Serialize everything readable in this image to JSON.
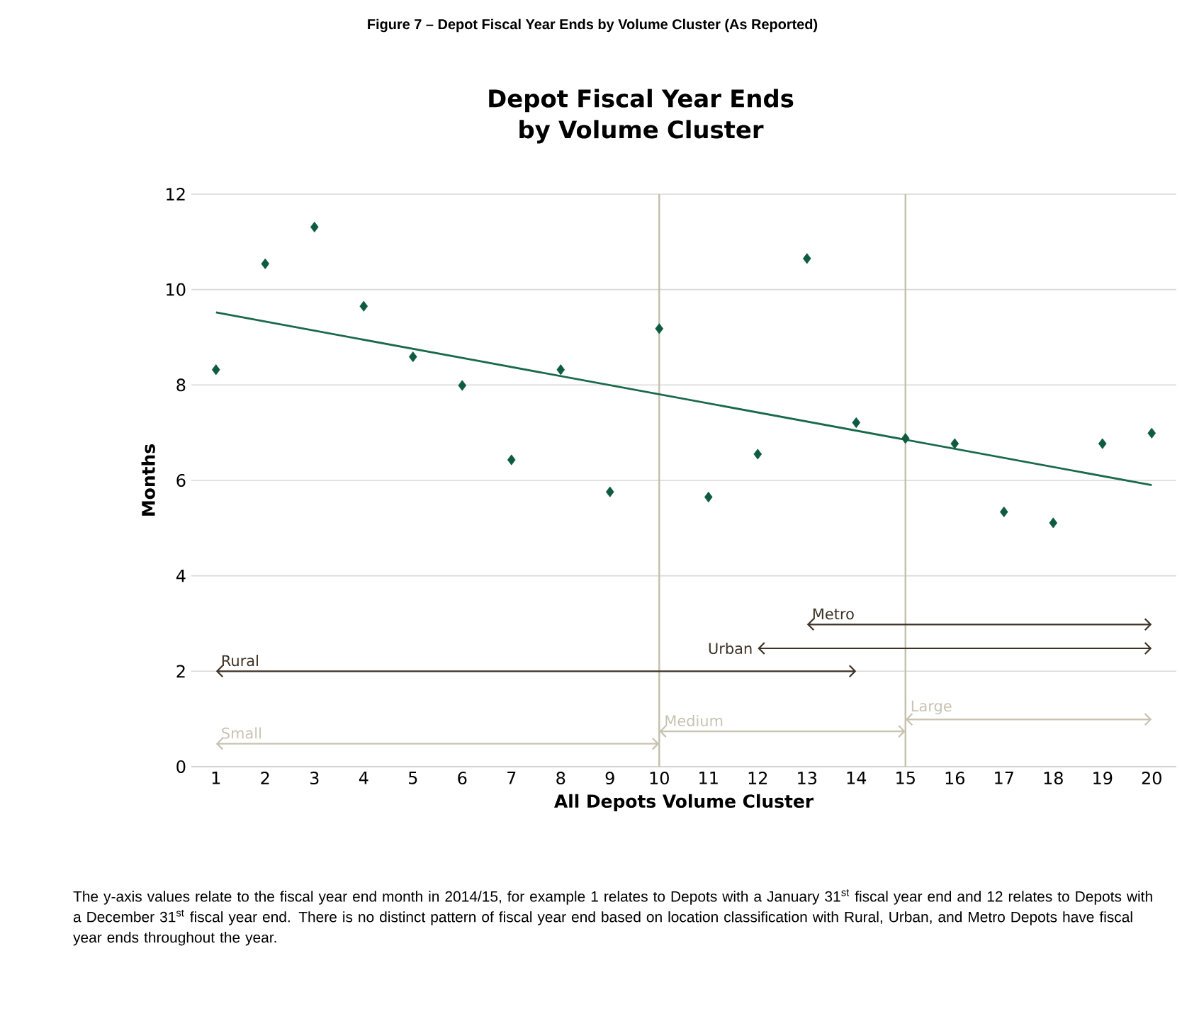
{
  "chart_data": {
    "type": "scatter",
    "title": "Figure 7 – Depot Fiscal Year Ends by Volume Cluster (As Reported)",
    "subtitle": "Depot Fiscal Year Ends by Volume Cluster",
    "xlabel": "All Depots Volume Cluster",
    "ylabel": "Months",
    "xlim": [
      0.5,
      20.5
    ],
    "xticks": [
      1,
      2,
      3,
      4,
      5,
      6,
      7,
      8,
      9,
      10,
      11,
      12,
      13,
      14,
      15,
      16,
      17,
      18,
      19,
      20
    ],
    "ylim": [
      0,
      12
    ],
    "yticks": [
      0,
      2,
      4,
      6,
      8,
      10,
      12
    ],
    "grid": "y",
    "marker": "diamond",
    "series": [
      {
        "color": "#0e5c40",
        "x": [
          1,
          2,
          3,
          4,
          5,
          6,
          7,
          8,
          9,
          10,
          11,
          12,
          13,
          14,
          15,
          16,
          17,
          18,
          19,
          20
        ],
        "values": [
          8.32,
          10.54,
          11.31,
          9.65,
          8.59,
          7.99,
          6.43,
          8.32,
          5.76,
          9.18,
          5.65,
          6.55,
          10.65,
          7.21,
          6.88,
          6.77,
          5.34,
          5.11,
          6.77,
          6.99
        ]
      },
      {
        "type": "line",
        "marker": "none",
        "color": "#1a6a4a",
        "x": [
          1,
          20
        ],
        "values": [
          9.52,
          5.9
        ]
      },
      {
        "type": "line",
        "marker": "cross",
        "name": "Small",
        "color": "#c8c3b0",
        "x": [
          1,
          10
        ],
        "values": [
          0.48,
          0.48
        ]
      },
      {
        "type": "line",
        "marker": "cross",
        "name": "Medium",
        "color": "#c8c3b0",
        "x": [
          10,
          15
        ],
        "values": [
          0.74,
          0.74
        ]
      },
      {
        "type": "line",
        "marker": "cross",
        "name": "Large",
        "color": "#c8c3b0",
        "x": [
          15,
          20
        ],
        "values": [
          0.99,
          0.99
        ]
      },
      {
        "type": "line",
        "marker": "cross",
        "name": "Rural",
        "color": "#3e3226",
        "x": [
          1,
          14
        ],
        "values": [
          2,
          2
        ]
      },
      {
        "type": "line",
        "marker": "cross",
        "name": "Urban",
        "color": "#3e3226",
        "x": [
          12,
          20
        ],
        "values": [
          2.48,
          2.48
        ]
      },
      {
        "type": "line",
        "marker": "cross",
        "name": "Metro",
        "color": "#3e3226",
        "x": [
          13,
          20
        ],
        "values": [
          2.98,
          2.98
        ]
      }
    ],
    "ref_lines": [
      {
        "axis": "x",
        "value": 10,
        "color": "#c4bfa8"
      },
      {
        "axis": "x",
        "value": 15,
        "color": "#c4bfa8"
      }
    ],
    "annotations": [
      "The y-axis values relate to the fiscal year end month in 2014/15, for example 1 relates to Depots with a January 31$^{st}$ fiscal year end and 12 relates to Depots with a December 31$^{st}$ fiscal year end.  There is no distinct pattern of fiscal year end based on location classification with Rural, Urban, and Metro Depots have fiscal year ends throughout the year."
    ]
  }
}
